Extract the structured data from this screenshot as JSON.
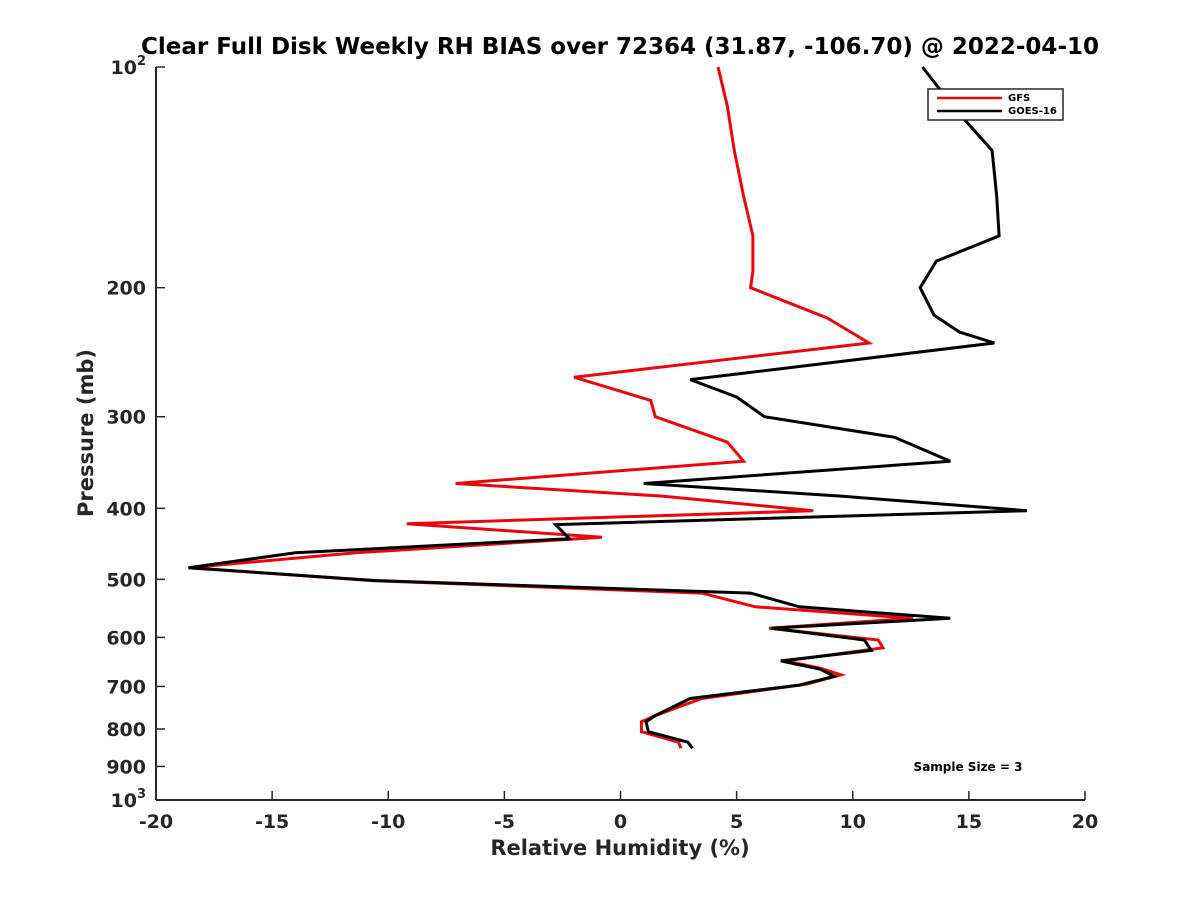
{
  "chart_data": {
    "type": "line",
    "title": "Clear Full Disk Weekly RH BIAS over 72364 (31.87, -106.70) @ 2022-04-10",
    "xlabel": "Relative Humidity (%)",
    "ylabel": "Pressure (mb)",
    "xlim": [
      -20,
      20
    ],
    "ylim": [
      100,
      1000
    ],
    "y_scale": "log",
    "y_reversed": true,
    "x_ticks": [
      -20,
      -15,
      -10,
      -5,
      0,
      5,
      10,
      15,
      20
    ],
    "x_tick_labels": [
      "-20",
      "-15",
      "-10",
      "-5",
      "0",
      "5",
      "10",
      "15",
      "20"
    ],
    "y_ticks": [
      {
        "value": 100,
        "base": "10",
        "exp": "2"
      },
      {
        "value": 200,
        "label": "200"
      },
      {
        "value": 300,
        "label": "300"
      },
      {
        "value": 400,
        "label": "400"
      },
      {
        "value": 500,
        "label": "500"
      },
      {
        "value": 600,
        "label": "600"
      },
      {
        "value": 700,
        "label": "700"
      },
      {
        "value": 800,
        "label": "800"
      },
      {
        "value": 900,
        "label": "900"
      },
      {
        "value": 1000,
        "base": "10",
        "exp": "3"
      }
    ],
    "grid": false,
    "legend_position": "top-right",
    "annotation": "Sample Size = 3",
    "series": [
      {
        "name": "GFS",
        "color": "#e8080b",
        "x": [
          4.2,
          4.6,
          4.9,
          5.3,
          5.7,
          5.7,
          5.6,
          8.9,
          10.7,
          -2.0,
          1.3,
          1.5,
          4.6,
          5.3,
          -7.1,
          1.8,
          8.3,
          -9.2,
          -0.8,
          -11.4,
          -18.6,
          -10.7,
          3.5,
          5.8,
          12.6,
          6.4,
          11.1,
          11.3,
          7.1,
          8.6,
          9.5,
          8.0,
          3.5,
          1.5,
          0.9,
          0.9,
          2.5,
          2.6
        ],
        "y": [
          100,
          113,
          130,
          150,
          170,
          190,
          200,
          220,
          238,
          265,
          285,
          300,
          325,
          345,
          370,
          385,
          403,
          420,
          438,
          460,
          482,
          502,
          522,
          545,
          565,
          583,
          605,
          620,
          646,
          661,
          675,
          695,
          727,
          767,
          782,
          807,
          834,
          850
        ]
      },
      {
        "name": "GOES-16",
        "color": "#000000",
        "x": [
          13.0,
          14.5,
          16.0,
          16.2,
          16.3,
          13.6,
          12.9,
          13.5,
          14.6,
          16.1,
          3.0,
          5.0,
          6.2,
          11.8,
          14.2,
          1.0,
          9.5,
          17.5,
          -2.8,
          -2.2,
          -14.0,
          -18.6,
          -10.5,
          5.6,
          7.7,
          14.2,
          6.5,
          10.5,
          10.8,
          6.9,
          8.6,
          9.2,
          7.7,
          3.0,
          1.5,
          1.1,
          1.2,
          2.9,
          3.1
        ],
        "y": [
          100,
          115,
          130,
          150,
          170,
          184,
          200,
          218,
          230,
          238,
          267,
          282,
          300,
          320,
          345,
          370,
          385,
          403,
          421,
          440,
          460,
          482,
          502,
          522,
          545,
          565,
          583,
          605,
          625,
          646,
          663,
          678,
          697,
          727,
          767,
          782,
          807,
          834,
          850
        ]
      }
    ]
  }
}
